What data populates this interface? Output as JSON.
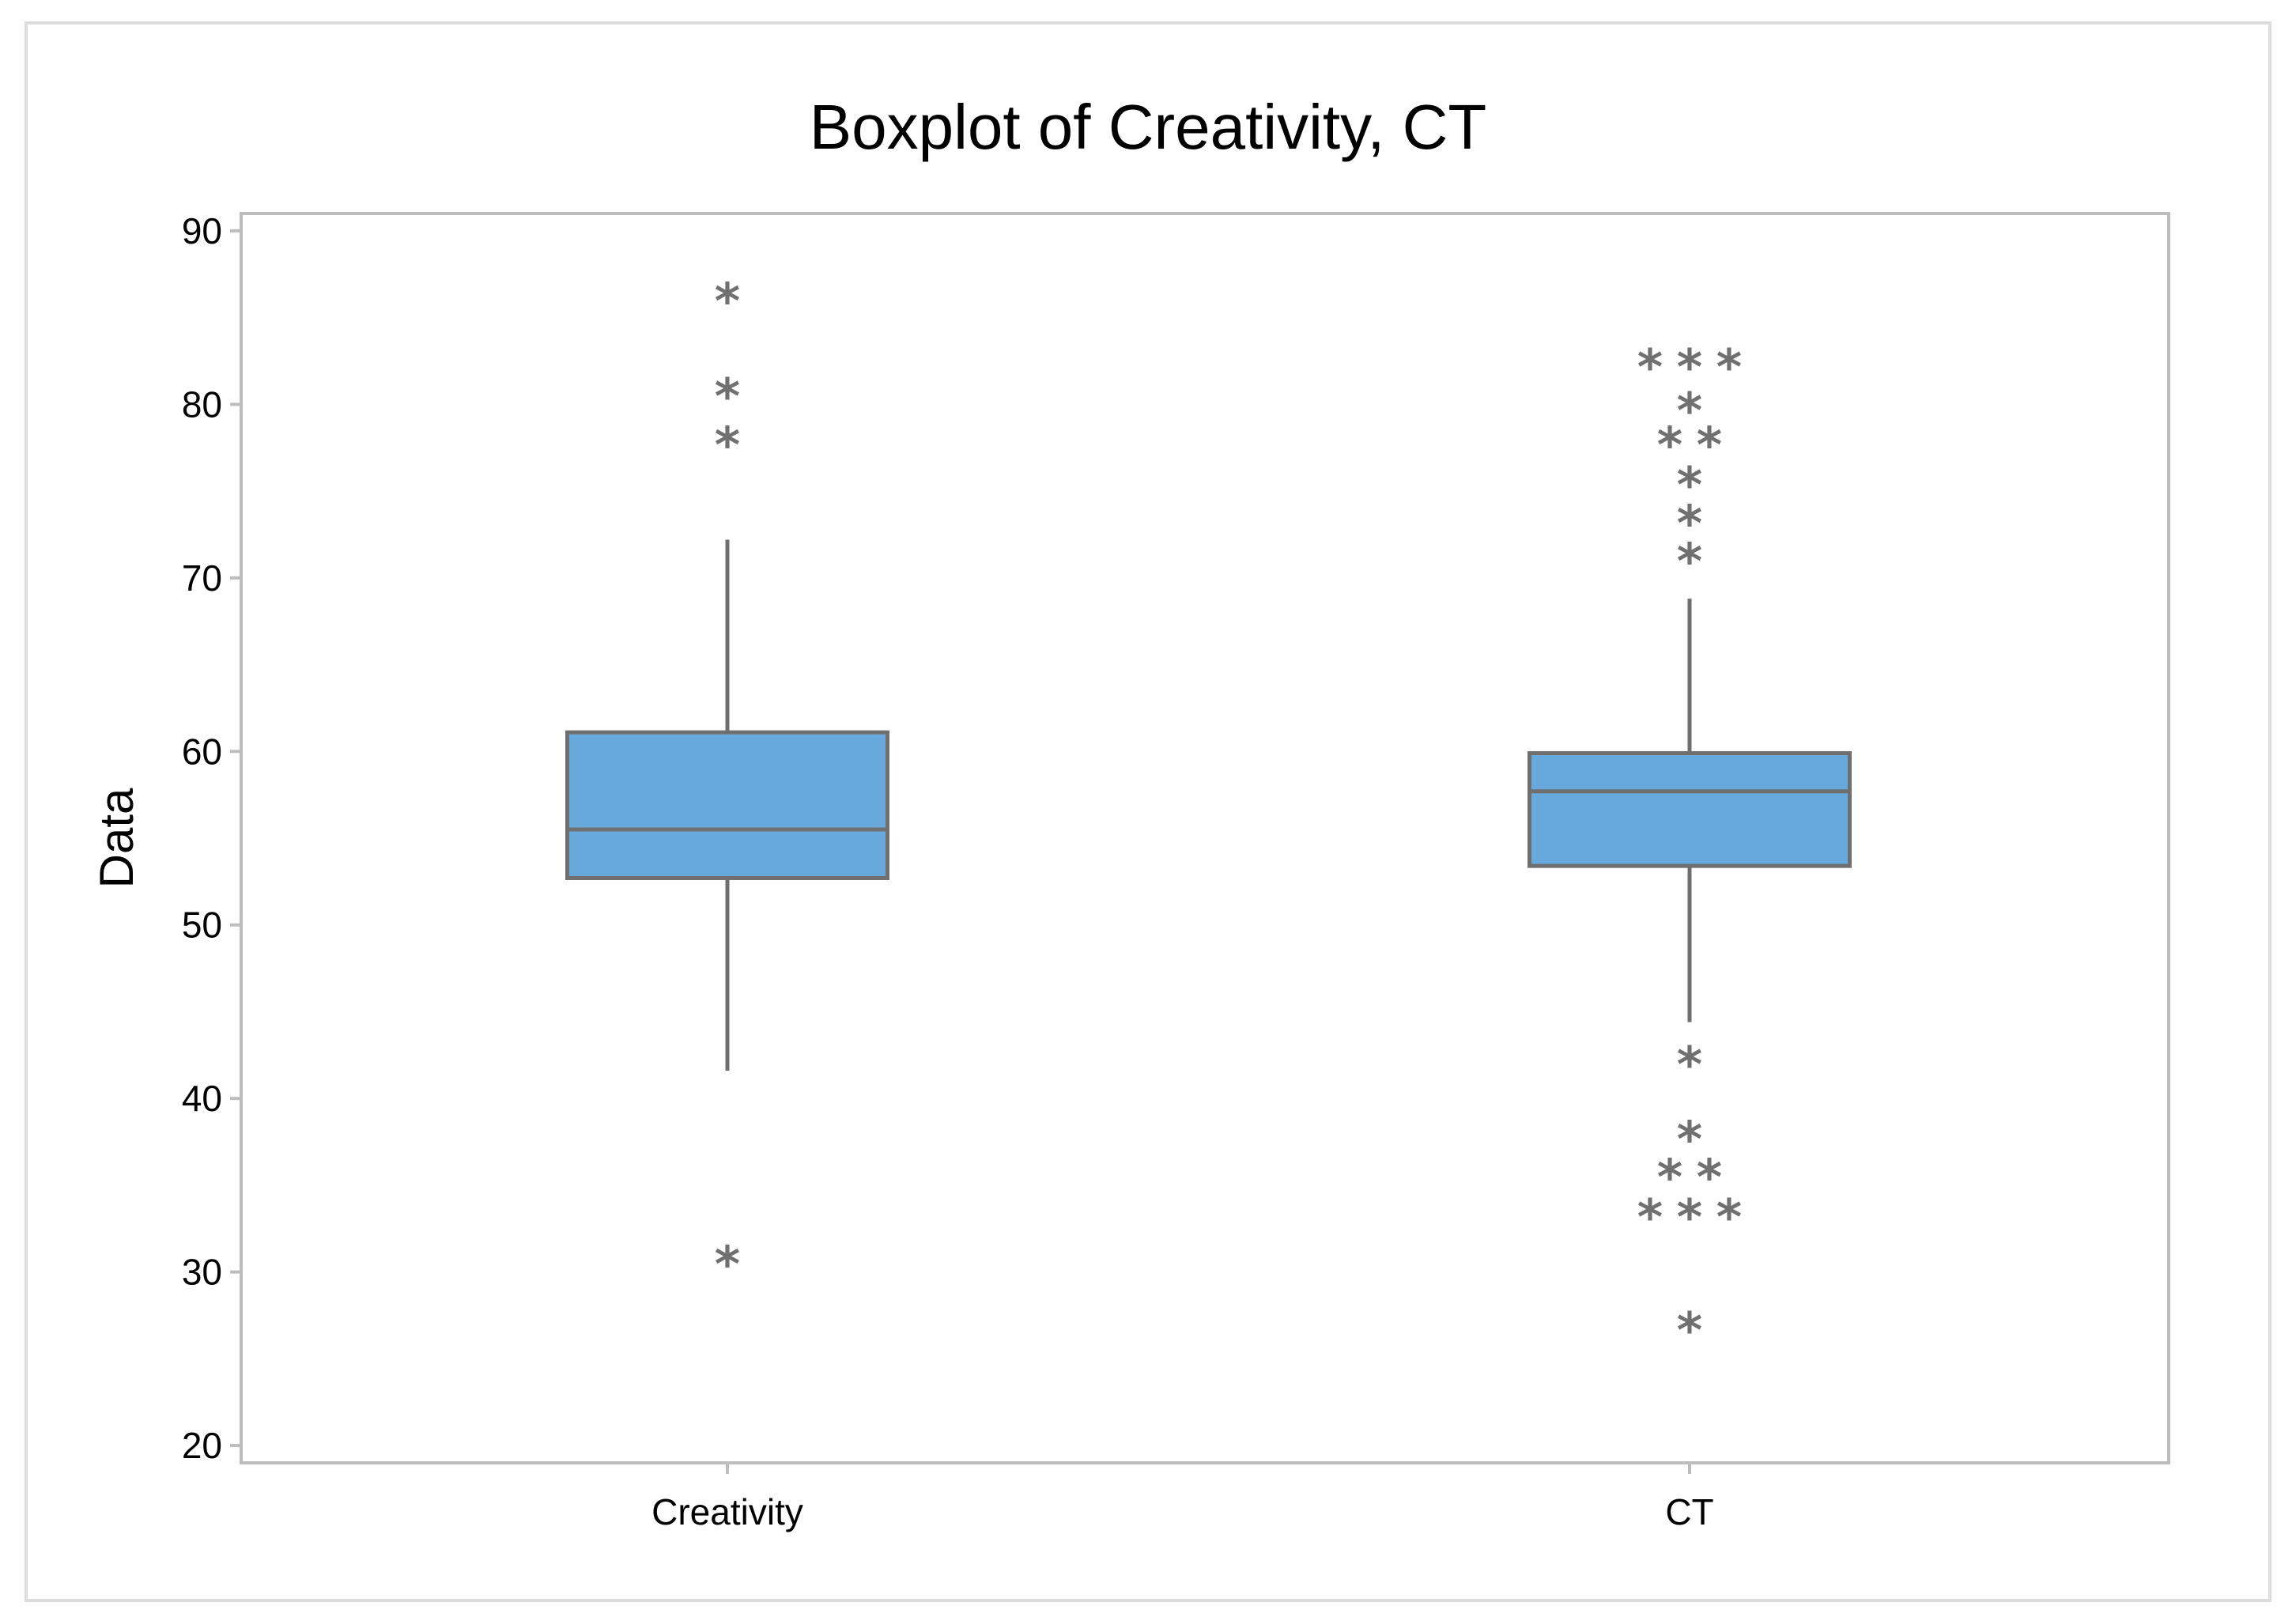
{
  "chart_data": {
    "type": "boxplot",
    "title": "Boxplot of Creativity, CT",
    "xlabel": "",
    "ylabel": "Data",
    "ylim": [
      19,
      91
    ],
    "yticks": [
      20,
      30,
      40,
      50,
      60,
      70,
      80,
      90
    ],
    "grid": false,
    "legend": "none",
    "colors": {
      "box_fill": "#67a9dc",
      "box_stroke": "#6f6f6f",
      "whisker": "#6f6f6f",
      "outlier": "#707070",
      "frame": "#bdbdbd",
      "outer_frame": "#dcdcdc"
    },
    "outlier_symbol": "*",
    "categories": [
      "Creativity",
      "CT"
    ],
    "boxes": [
      {
        "category": "Creativity",
        "whisker_low": 41.6,
        "q1": 52.7,
        "median": 55.5,
        "q3": 61.1,
        "whisker_high": 72.2,
        "outliers": [
          86.1,
          80.6,
          77.8,
          30.6
        ]
      },
      {
        "category": "CT",
        "whisker_low": 44.4,
        "q1": 53.4,
        "median": 57.7,
        "q3": 59.9,
        "whisker_high": 68.8,
        "outliers": [
          82.3,
          82.3,
          82.3,
          79.8,
          77.8,
          77.8,
          75.5,
          73.3,
          71.1,
          42.1,
          37.8,
          35.6,
          35.6,
          33.3,
          33.3,
          33.3,
          26.8
        ]
      }
    ]
  }
}
